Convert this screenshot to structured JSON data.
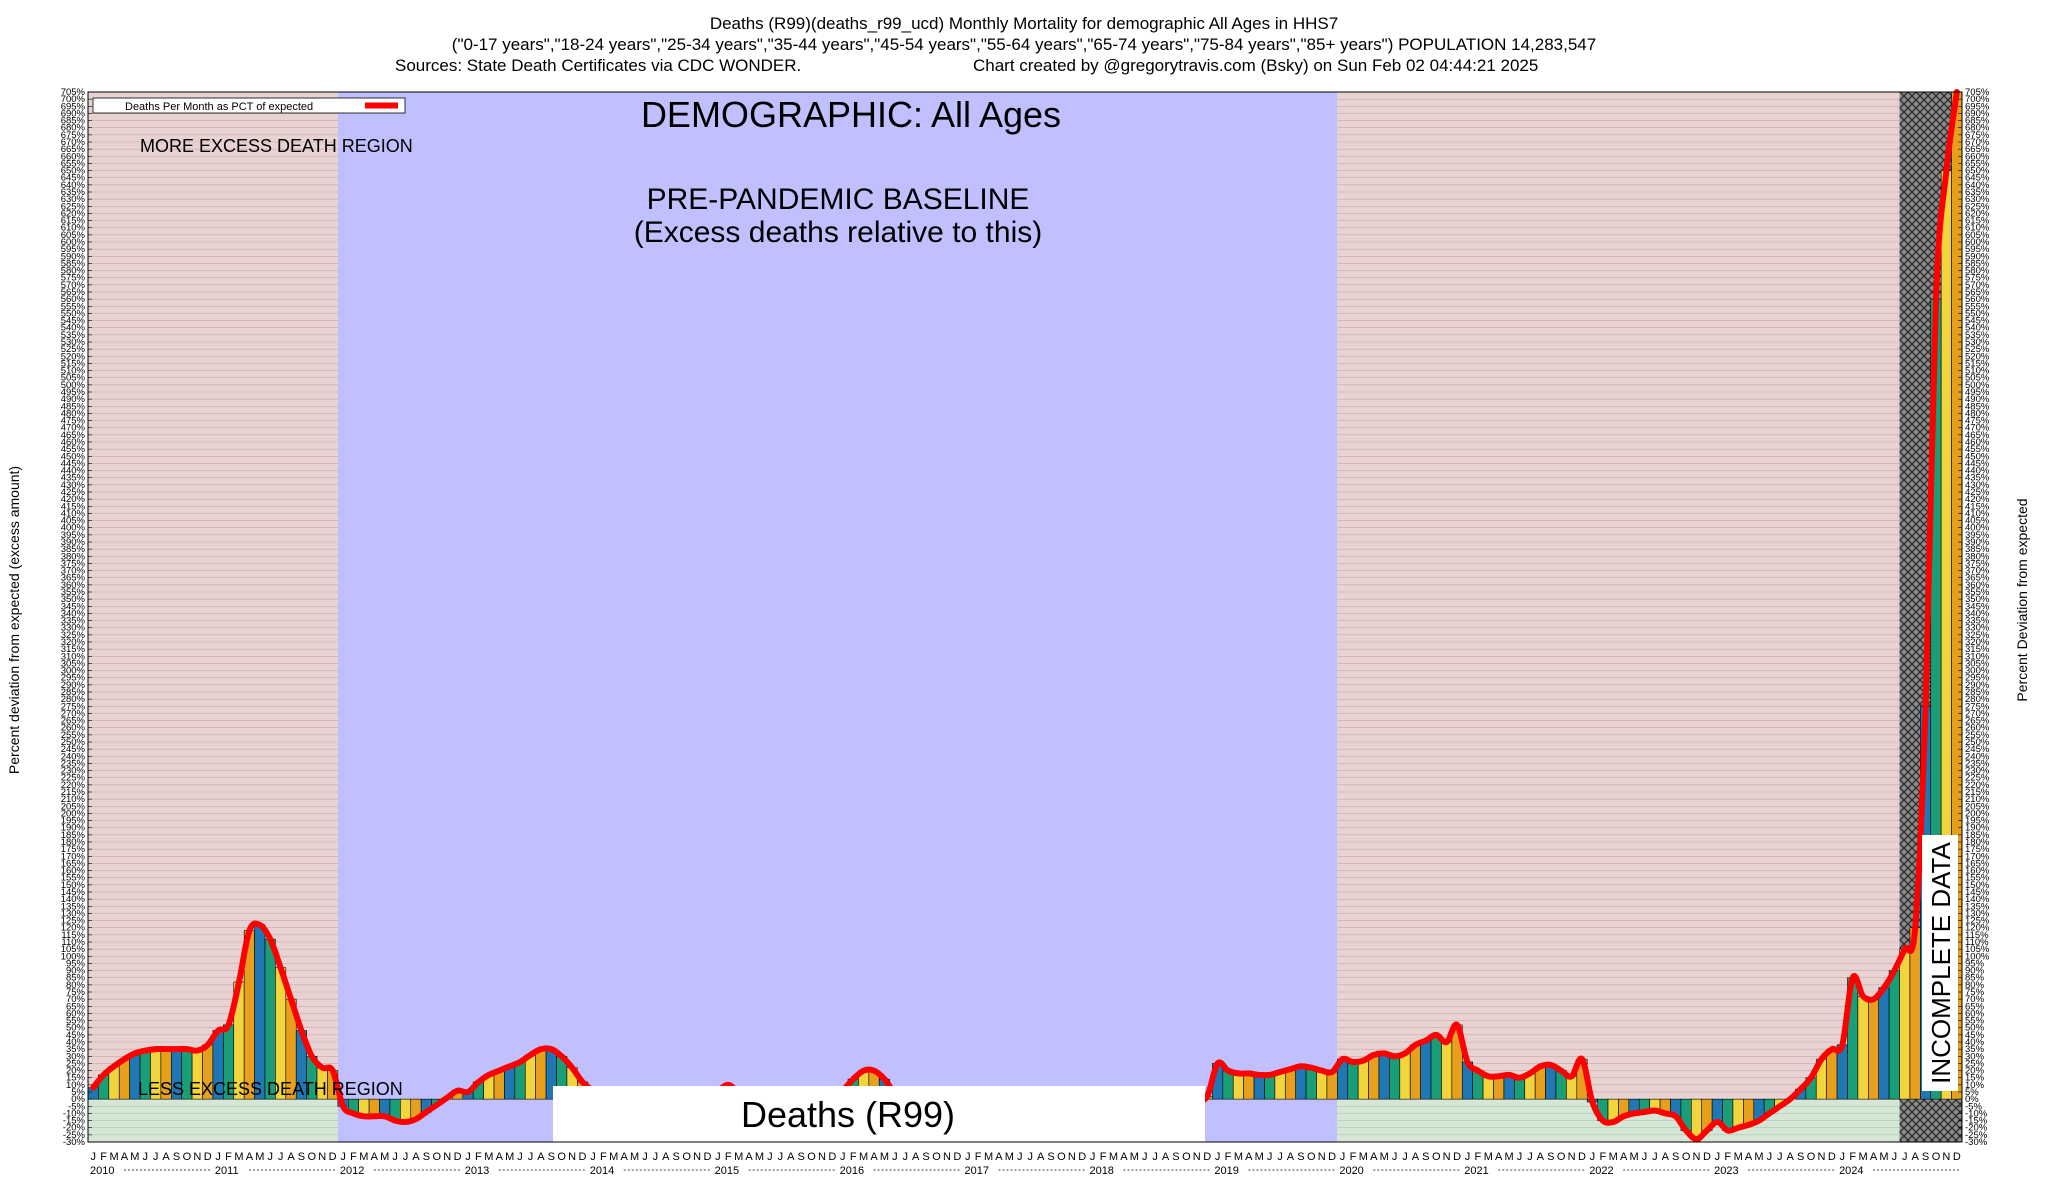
{
  "header": {
    "line1": "Deaths (R99)(deaths_r99_ucd) Monthly Mortality for demographic All Ages in HHS7",
    "line2": "(\"0-17 years\",\"18-24 years\",\"25-34 years\",\"35-44 years\",\"45-54 years\",\"55-64 years\",\"65-74 years\",\"75-84 years\",\"85+ years\") POPULATION 14,283,547",
    "line3_left": "Sources: State Death Certificates via CDC WONDER.",
    "line3_right": "Chart created by @gregorytravis.com (Bsky) on Sun Feb 02 04:44:21 2025"
  },
  "legend": {
    "label": "Deaths Per Month as PCT of expected",
    "color": "#ff0000"
  },
  "annotations": {
    "demographic": "DEMOGRAPHIC: All Ages",
    "baseline_line1": "PRE-PANDEMIC BASELINE",
    "baseline_line2": "(Excess deaths relative to this)",
    "more_excess": "MORE EXCESS DEATH REGION",
    "less_excess": "LESS EXCESS DEATH REGION",
    "cause_label": "Deaths (R99)",
    "incomplete": "INCOMPLETE DATA"
  },
  "axes": {
    "ylabel_left": "Percent deviation from expected (excess amount)",
    "ylabel_right": "Percent Deviation from expected"
  },
  "colors": {
    "baseline_region": "#c0c0ff",
    "excess_region": "#e8d2d2",
    "less_region": "#d6e6d6",
    "line": "#ff0000",
    "bar_palette": [
      "#1f78b4",
      "#1a9e77",
      "#f2d43d",
      "#e6a01e"
    ]
  },
  "chart_data": {
    "type": "bar",
    "title": "Deaths (R99)(deaths_r99_ucd) Monthly Mortality for demographic All Ages in HHS7",
    "ylabel": "Percent deviation from expected (excess amount)",
    "ylim": [
      -30,
      705
    ],
    "ytick_step": 5,
    "ytick_suffix": "%",
    "month_labels": [
      "J",
      "F",
      "M",
      "A",
      "M",
      "J",
      "J",
      "A",
      "S",
      "O",
      "N",
      "D"
    ],
    "years": [
      "2010",
      "2011",
      "2012",
      "2013",
      "2014",
      "2015",
      "2016",
      "2017",
      "2018",
      "2019",
      "2020",
      "2021",
      "2022",
      "2023",
      "2024"
    ],
    "baseline_years": [
      "2012",
      "2013",
      "2014",
      "2015",
      "2016",
      "2017",
      "2018",
      "2019"
    ],
    "incomplete_from": "2024-07",
    "series": [
      {
        "name": "Deaths Per Month as PCT of expected",
        "start": "2010-01",
        "values": [
          8,
          17,
          23,
          28,
          32,
          34,
          35,
          35,
          35,
          35,
          34,
          38,
          48,
          52,
          82,
          118,
          122,
          112,
          92,
          70,
          48,
          30,
          22,
          20,
          -5,
          -10,
          -12,
          -12,
          -12,
          -15,
          -16,
          -14,
          -9,
          -4,
          1,
          6,
          5,
          12,
          17,
          20,
          23,
          26,
          31,
          35,
          35,
          30,
          22,
          12,
          5,
          -8,
          -10,
          -8,
          -6,
          -6,
          -4,
          -4,
          -2,
          0,
          2,
          4,
          6,
          10,
          4,
          -4,
          -8,
          -6,
          -5,
          -4,
          -4,
          -3,
          -2,
          0,
          6,
          14,
          20,
          20,
          14,
          4,
          -2,
          -4,
          -3,
          -2,
          -1,
          -2,
          -3,
          -4,
          -3,
          -3,
          -2,
          -2,
          -1,
          -1,
          -1,
          -1,
          0,
          0,
          -1,
          -1,
          -1,
          -1,
          -2,
          -2,
          -2,
          -2,
          -2,
          -1,
          -1,
          2,
          25,
          20,
          18,
          18,
          17,
          17,
          19,
          21,
          23,
          22,
          20,
          19,
          28,
          26,
          27,
          31,
          32,
          30,
          32,
          38,
          41,
          45,
          40,
          52,
          26,
          20,
          16,
          16,
          17,
          15,
          18,
          23,
          24,
          20,
          16,
          28,
          -2,
          -15,
          -16,
          -12,
          -10,
          -9,
          -8,
          -10,
          -12,
          -22,
          -28,
          -22,
          -16,
          -22,
          -20,
          -18,
          -15,
          -10,
          -5,
          0,
          7,
          15,
          28,
          35,
          38,
          85,
          72,
          70,
          78,
          90,
          105,
          120,
          275,
          560,
          650,
          705
        ]
      }
    ]
  }
}
